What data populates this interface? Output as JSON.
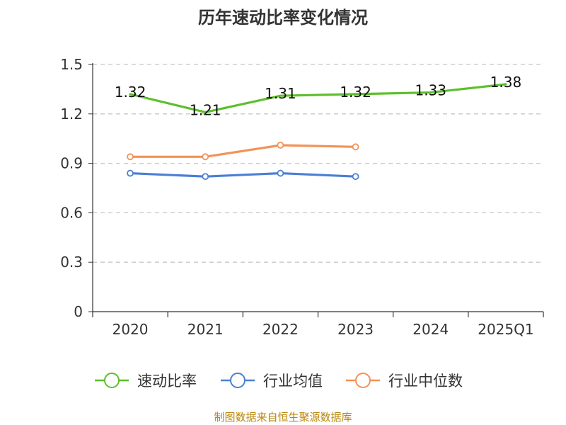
{
  "chart_data": {
    "type": "line",
    "title": "历年速动比率变化情况",
    "categories": [
      "2020",
      "2021",
      "2022",
      "2023",
      "2024",
      "2025Q1"
    ],
    "ylim": [
      0,
      1.5
    ],
    "yticks": [
      "0",
      "0.3",
      "0.6",
      "0.9",
      "1.2",
      "1.5"
    ],
    "grid": true,
    "legend_position": "bottom",
    "series": [
      {
        "name": "速动比率",
        "color": "#5cc02a",
        "values": [
          1.32,
          1.21,
          1.31,
          1.32,
          1.33,
          1.38
        ],
        "labels": [
          "1.32",
          "1.21",
          "1.31",
          "1.32",
          "1.33",
          "1.38"
        ],
        "markers": false
      },
      {
        "name": "行业均值",
        "color": "#4a7fd6",
        "values": [
          0.84,
          0.82,
          0.84,
          0.82,
          null,
          null
        ],
        "markers": true
      },
      {
        "name": "行业中位数",
        "color": "#f39257",
        "values": [
          0.94,
          0.94,
          1.01,
          1.0,
          null,
          null
        ],
        "markers": true
      }
    ]
  },
  "source": "制图数据来自恒生聚源数据库"
}
